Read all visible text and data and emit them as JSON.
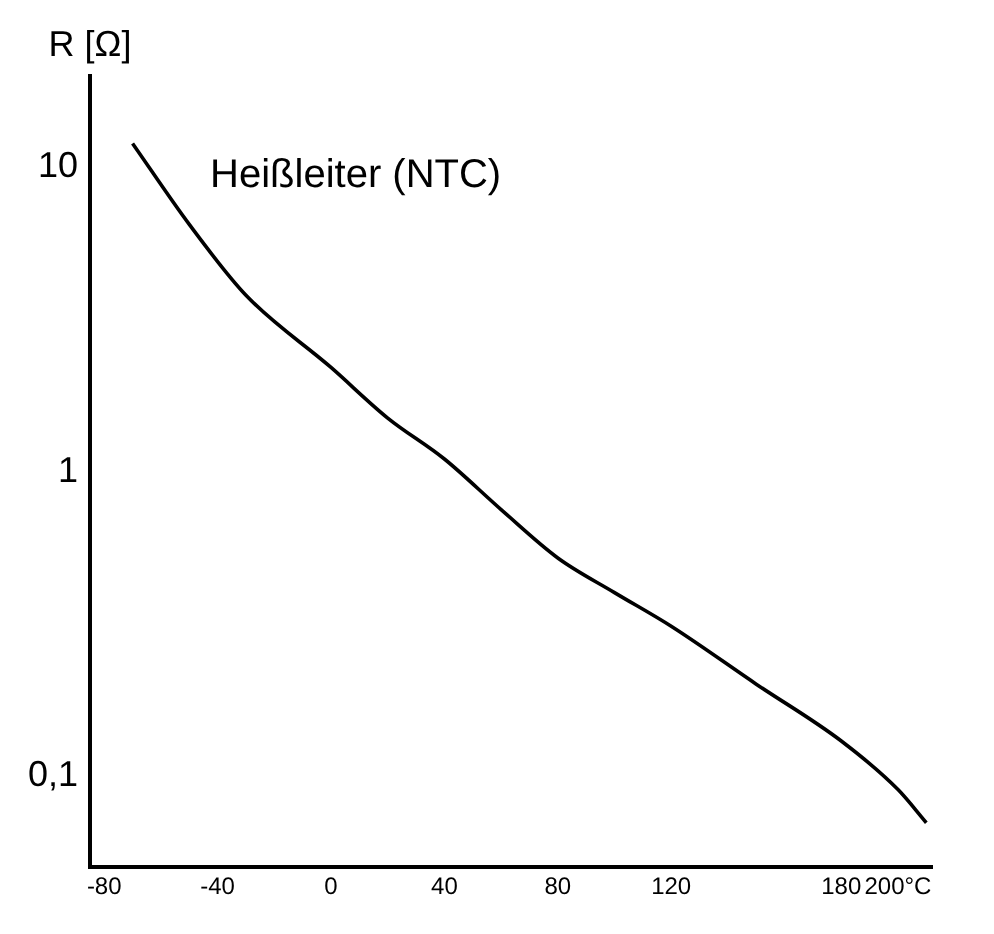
{
  "chart_data": {
    "type": "line",
    "ylabel": "R [Ω]",
    "annotations": [
      "Heißleiter (NTC)"
    ],
    "log": "y",
    "grid": false,
    "marker": "none",
    "line_style": "solid",
    "x": [
      -70,
      -50,
      -30,
      0,
      20,
      40,
      60,
      80,
      100,
      120,
      150,
      180,
      200,
      210
    ],
    "series": [
      {
        "color": "#000000",
        "values": [
          12,
          6.5,
          3.8,
          2.2,
          1.5,
          1.1,
          0.75,
          0.52,
          0.4,
          0.31,
          0.2,
          0.13,
          0.09,
          0.07
        ]
      }
    ],
    "xlim": [
      -85,
      212
    ],
    "xticks": [
      -80,
      -40,
      0,
      40,
      80,
      120,
      180,
      {
        "value": 200,
        "label": "200°C"
      }
    ],
    "ylim": [
      0.05,
      20
    ],
    "yticks": [
      {
        "value": 0.1,
        "label": "0,1"
      },
      1,
      10
    ]
  }
}
